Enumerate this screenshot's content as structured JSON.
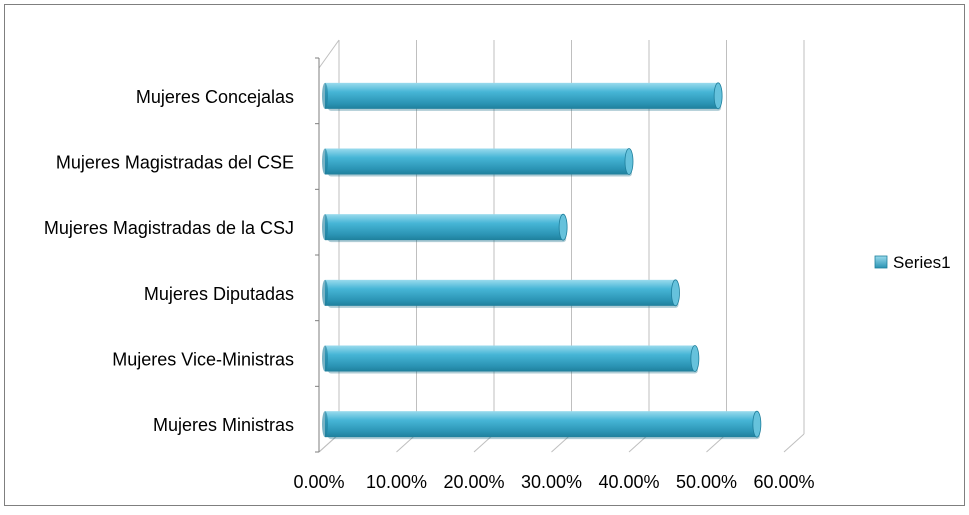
{
  "chart_data": {
    "type": "bar",
    "orientation": "horizontal",
    "style": "3d-cylinder",
    "categories": [
      "Mujeres Ministras",
      "Mujeres Vice-Ministras",
      "Mujeres Diputadas",
      "Mujeres Magistradas de la CSJ",
      "Mujeres Magistradas del CSE",
      "Mujeres  Concejalas"
    ],
    "series": [
      {
        "name": "Series1",
        "values": [
          56.5,
          48.5,
          46.0,
          31.5,
          40.0,
          51.5
        ]
      }
    ],
    "x_ticks": [
      "0.00%",
      "10.00%",
      "20.00%",
      "30.00%",
      "40.00%",
      "50.00%",
      "60.00%"
    ],
    "xlim": [
      0,
      60
    ],
    "grid": true,
    "legend_position": "right",
    "colors": {
      "bar_main": "#3fb0d2",
      "bar_light": "#8fd6ea",
      "bar_dark": "#1f7f9c",
      "bar_end": "#66c2dc",
      "grid": "#bfbfbf",
      "axis": "#7f7f7f",
      "border": "#7f7f7f"
    }
  }
}
